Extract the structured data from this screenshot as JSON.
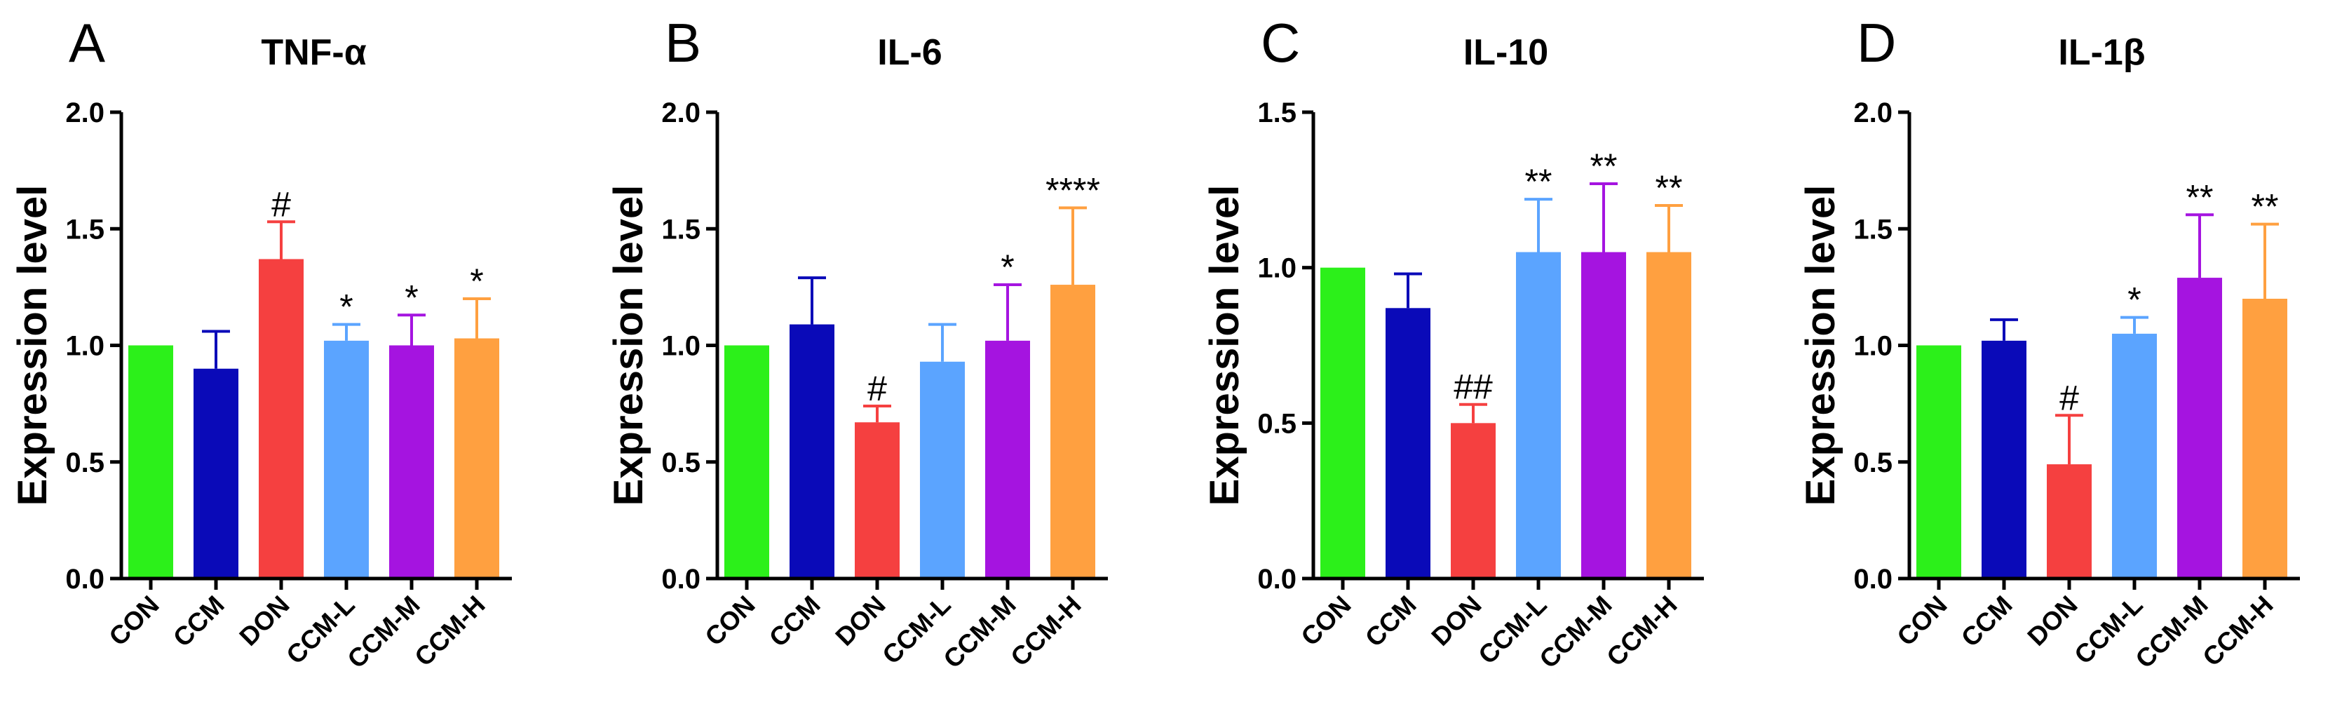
{
  "colors": {
    "CON": "#2cf01a",
    "CCM": "#0a0ab8",
    "DON": "#f54040",
    "CCM-L": "#5ba4ff",
    "CCM-M": "#a514e0",
    "CCM-H": "#ffa040"
  },
  "chart_data": [
    {
      "type": "bar",
      "panel": "A",
      "title": "TNF-α",
      "ylabel": "Expression level",
      "xlabel": "",
      "ylim": [
        0,
        2.0
      ],
      "yticks": [
        "0.0",
        "0.5",
        "1.0",
        "1.5",
        "2.0"
      ],
      "categories": [
        "CON",
        "CCM",
        "DON",
        "CCM-L",
        "CCM-M",
        "CCM-H"
      ],
      "values": [
        1.0,
        0.9,
        1.37,
        1.02,
        1.0,
        1.03
      ],
      "errors": [
        0,
        0.16,
        0.16,
        0.07,
        0.13,
        0.17
      ],
      "significance": [
        "",
        "",
        "#",
        "*",
        "*",
        "*"
      ]
    },
    {
      "type": "bar",
      "panel": "B",
      "title": "IL-6",
      "ylabel": "Expression level",
      "xlabel": "",
      "ylim": [
        0,
        2.0
      ],
      "yticks": [
        "0.0",
        "0.5",
        "1.0",
        "1.5",
        "2.0"
      ],
      "categories": [
        "CON",
        "CCM",
        "DON",
        "CCM-L",
        "CCM-M",
        "CCM-H"
      ],
      "values": [
        1.0,
        1.09,
        0.67,
        0.93,
        1.02,
        1.26
      ],
      "errors": [
        0,
        0.2,
        0.07,
        0.16,
        0.24,
        0.33
      ],
      "significance": [
        "",
        "",
        "#",
        "",
        "*",
        "****"
      ]
    },
    {
      "type": "bar",
      "panel": "C",
      "title": "IL-10",
      "ylabel": "Expression level",
      "xlabel": "",
      "ylim": [
        0,
        1.5
      ],
      "yticks": [
        "0.0",
        "0.5",
        "1.0",
        "1.5"
      ],
      "categories": [
        "CON",
        "CCM",
        "DON",
        "CCM-L",
        "CCM-M",
        "CCM-H"
      ],
      "values": [
        1.0,
        0.87,
        0.5,
        1.05,
        1.05,
        1.05
      ],
      "errors": [
        0,
        0.11,
        0.06,
        0.17,
        0.22,
        0.15
      ],
      "significance": [
        "",
        "",
        "##",
        "**",
        "**",
        "**"
      ]
    },
    {
      "type": "bar",
      "panel": "D",
      "title": "IL-1β",
      "ylabel": "Expression level",
      "xlabel": "",
      "ylim": [
        0,
        2.0
      ],
      "yticks": [
        "0.0",
        "0.5",
        "1.0",
        "1.5",
        "2.0"
      ],
      "categories": [
        "CON",
        "CCM",
        "DON",
        "CCM-L",
        "CCM-M",
        "CCM-H"
      ],
      "values": [
        1.0,
        1.02,
        0.49,
        1.05,
        1.29,
        1.2
      ],
      "errors": [
        0,
        0.09,
        0.21,
        0.07,
        0.27,
        0.32
      ],
      "significance": [
        "",
        "",
        "#",
        "*",
        "**",
        "**"
      ]
    }
  ]
}
